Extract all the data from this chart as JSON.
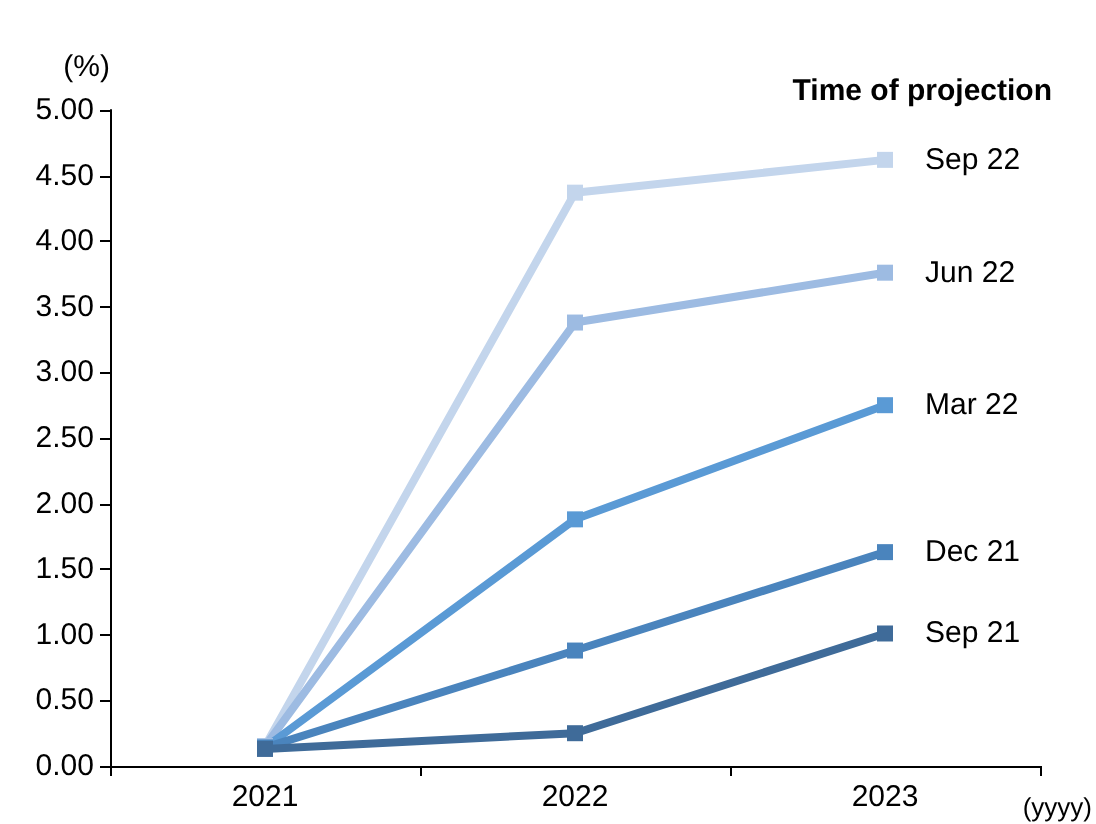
{
  "chart_data": {
    "type": "line",
    "ylabel": "(%)",
    "xlabel": "(yyyy)",
    "legend_title": "Time of projection",
    "categories": [
      "2021",
      "2022",
      "2023"
    ],
    "series": [
      {
        "name": "Sep 22",
        "color": "#c3d5ec",
        "values": [
          0.15,
          4.37,
          4.62
        ]
      },
      {
        "name": "Jun 22",
        "color": "#9dbbe2",
        "values": [
          0.15,
          3.38,
          3.76
        ]
      },
      {
        "name": "Mar 22",
        "color": "#5a9ad5",
        "values": [
          0.14,
          1.88,
          2.75
        ]
      },
      {
        "name": "Dec 21",
        "color": "#4a84bd",
        "values": [
          0.14,
          0.88,
          1.63
        ]
      },
      {
        "name": "Sep 21",
        "color": "#3f6b99",
        "values": [
          0.13,
          0.25,
          1.01
        ]
      }
    ],
    "ylim": [
      0,
      5
    ],
    "yticks": [
      {
        "value": 0,
        "label": "0.00"
      },
      {
        "value": 0.5,
        "label": "0.50"
      },
      {
        "value": 1,
        "label": "1.00"
      },
      {
        "value": 1.5,
        "label": "1.50"
      },
      {
        "value": 2,
        "label": "2.00"
      },
      {
        "value": 2.5,
        "label": "2.50"
      },
      {
        "value": 3,
        "label": "3.00"
      },
      {
        "value": 3.5,
        "label": "3.50"
      },
      {
        "value": 4,
        "label": "4.00"
      },
      {
        "value": 4.5,
        "label": "4.50"
      },
      {
        "value": 5,
        "label": "5.00"
      }
    ],
    "grid": false,
    "marker": "square",
    "line_style": "solid"
  }
}
